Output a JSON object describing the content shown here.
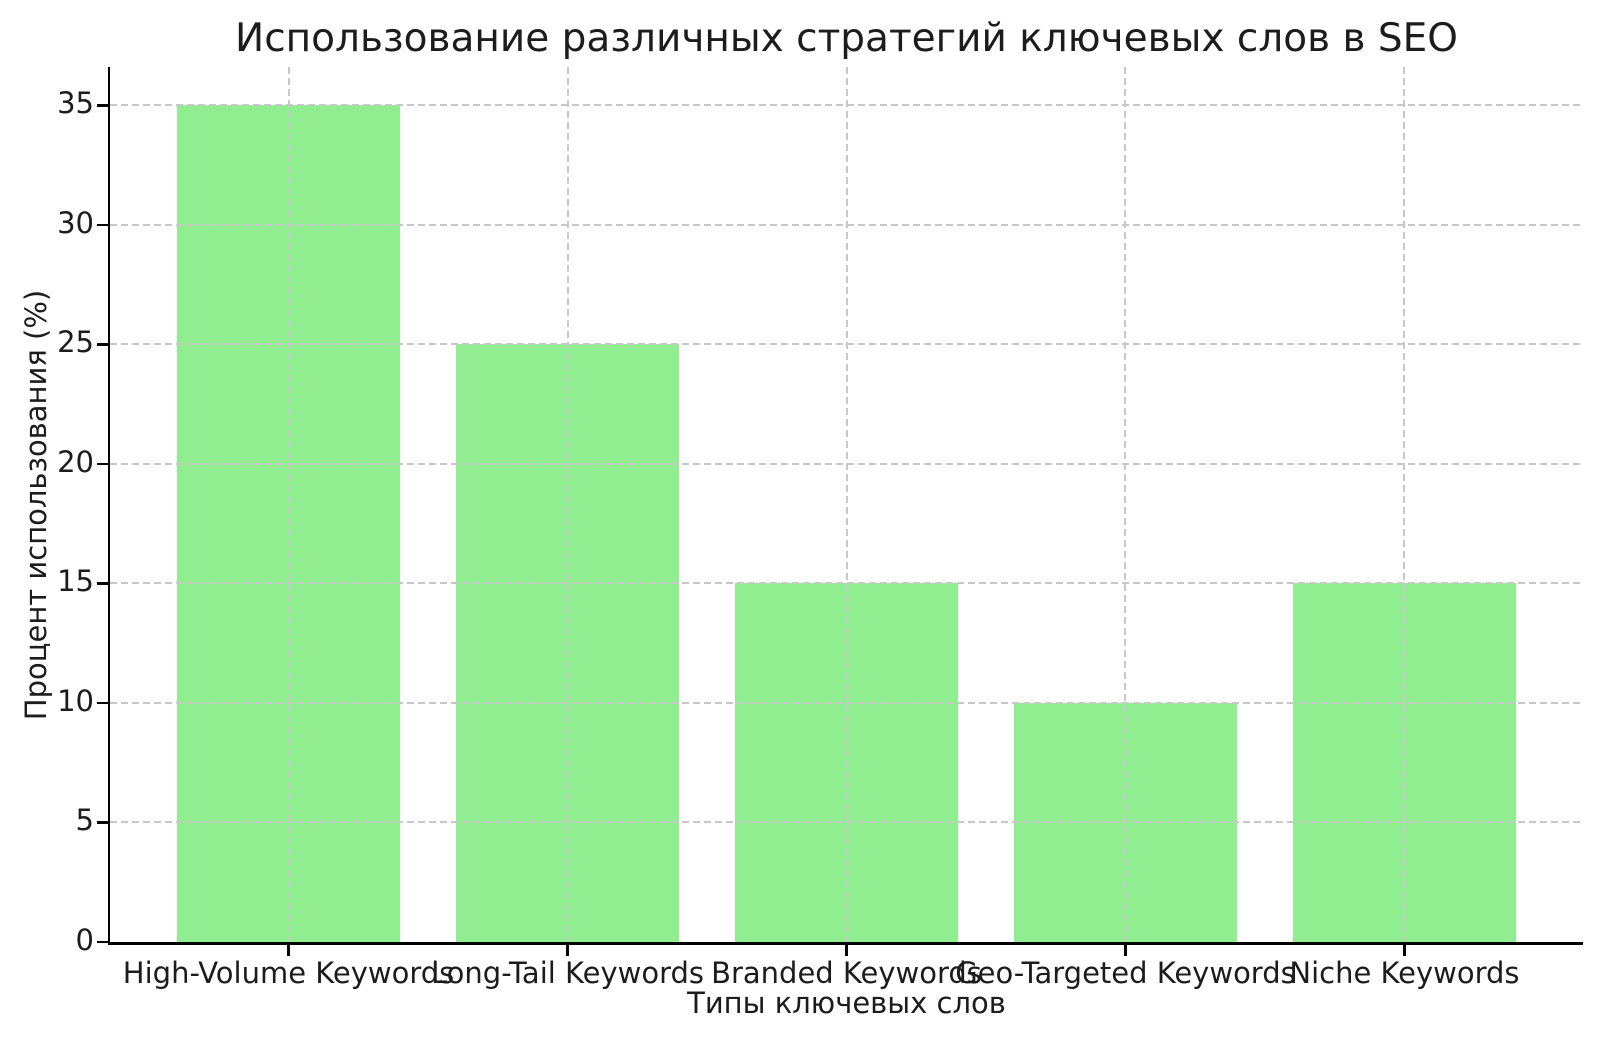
{
  "chart_data": {
    "type": "bar",
    "title": "Использование различных стратегий ключевых слов в SEO",
    "xlabel": "Типы ключевых слов",
    "ylabel": "Процент использования (%)",
    "categories": [
      "High-Volume Keywords",
      "Long-Tail Keywords",
      "Branded Keywords",
      "Geo-Targeted Keywords",
      "Niche Keywords"
    ],
    "values": [
      35,
      25,
      15,
      10,
      15
    ],
    "yticks": [
      0,
      5,
      10,
      15,
      20,
      25,
      30,
      35
    ],
    "ylim": [
      0,
      36.6
    ],
    "legend": null,
    "grid": true,
    "grid_style": "dashed",
    "grid_color": "#c8c8c8",
    "bar_color": "#90EE90",
    "axis_color": "#000000",
    "text_color": "#1c1c1c",
    "background": "#ffffff"
  }
}
